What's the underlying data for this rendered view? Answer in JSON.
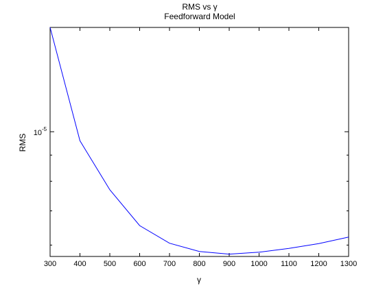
{
  "chart_data": {
    "type": "line",
    "title": "RMS vs  γ",
    "subtitle": "Feedforward Model",
    "xlabel": "γ",
    "ylabel": "RMS",
    "xlim": [
      300,
      1300
    ],
    "x_ticks": [
      300,
      400,
      500,
      600,
      700,
      800,
      900,
      1000,
      1100,
      1200,
      1300
    ],
    "y_scale": "log",
    "ylim": [
      5.7e-06,
      1.6e-05
    ],
    "y_tick_label": {
      "base": "10",
      "exponent": "-5",
      "value": 1e-05
    },
    "y_minor_ticks": [
      6e-06,
      7e-06,
      8e-06,
      9e-06
    ],
    "grid": false,
    "series": [
      {
        "color": "#0000ff",
        "x": [
          300,
          400,
          500,
          600,
          700,
          800,
          900,
          1000,
          1100,
          1200,
          1300
        ],
        "y": [
          1.6e-05,
          9.6e-06,
          7.7e-06,
          6.55e-06,
          6.05e-06,
          5.83e-06,
          5.76e-06,
          5.81e-06,
          5.91e-06,
          6.04e-06,
          6.22e-06
        ]
      }
    ]
  }
}
